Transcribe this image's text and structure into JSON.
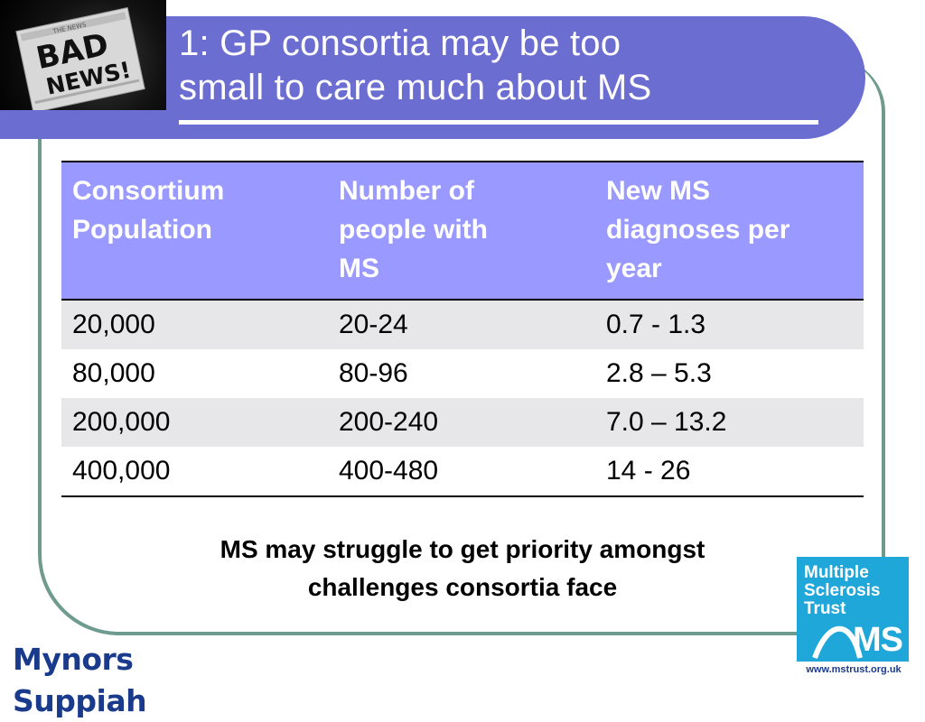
{
  "slide": {
    "title_line1": "1:  GP consortia may be too",
    "title_line2": "small to care much about MS"
  },
  "bad_news_logo": {
    "line1": "BAD",
    "line2": "NEWS!",
    "small": "THE NEWS"
  },
  "table": {
    "headers": [
      [
        "Consortium",
        "Population"
      ],
      [
        "Number of",
        "people with",
        "MS"
      ],
      [
        "New MS",
        "diagnoses per",
        "year"
      ]
    ],
    "rows": [
      [
        "20,000",
        "20-24",
        "0.7 - 1.3"
      ],
      [
        "80,000",
        "80-96",
        "2.8 – 5.3"
      ],
      [
        "200,000",
        "200-240",
        "7.0 – 13.2"
      ],
      [
        "400,000",
        "400-480",
        "14 - 26"
      ]
    ]
  },
  "note": {
    "line1": "MS may struggle to get priority amongst",
    "line2": "challenges consortia face"
  },
  "footer": {
    "brand": "Mynors Suppiah",
    "ms_trust_lines": [
      "Multiple",
      "Sclerosis",
      "Trust"
    ],
    "ms_mark": "MS",
    "url": "www.mstrust.org.uk"
  },
  "colors": {
    "title_band": "#6b6dd1",
    "table_header": "#9999ff",
    "frame": "#6f9b8f",
    "ms_trust_blue": "#1ea7d8"
  }
}
